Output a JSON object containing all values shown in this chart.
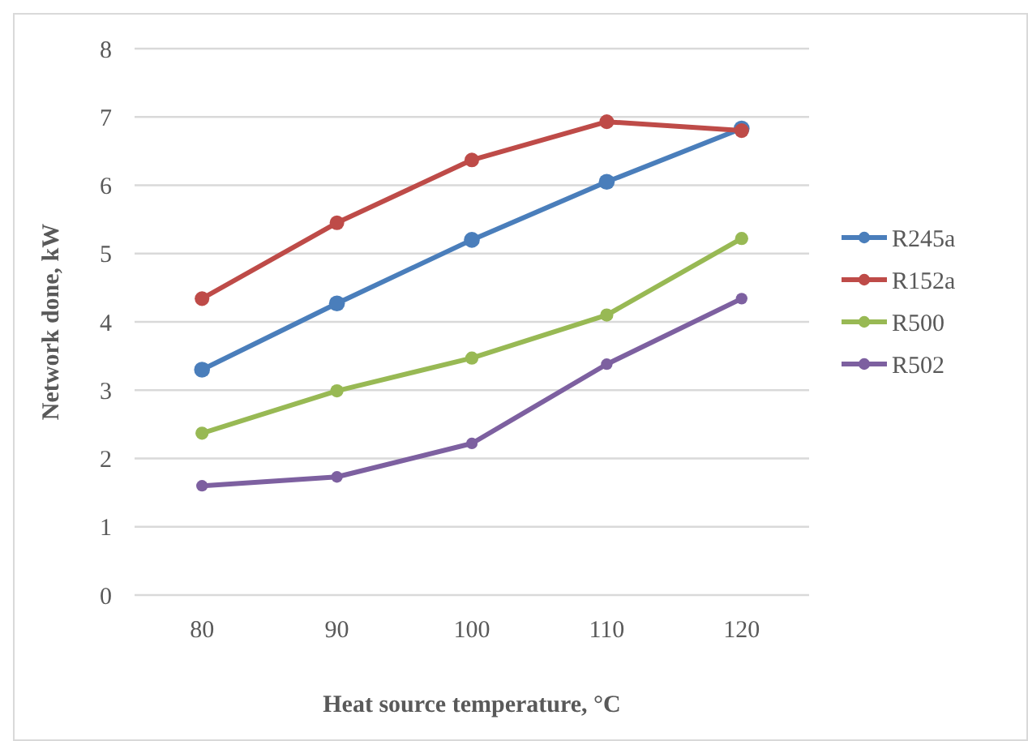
{
  "chart_data": {
    "type": "line",
    "xlabel": "Heat source temperature, °C",
    "ylabel": "Network done, kW",
    "categories": [
      "80",
      "90",
      "100",
      "110",
      "120"
    ],
    "series": [
      {
        "name": "R245a",
        "color": "#4a7ebb",
        "values": [
          3.3,
          4.27,
          5.2,
          6.05,
          6.83
        ]
      },
      {
        "name": "R152a",
        "color": "#be4b48",
        "values": [
          4.34,
          5.45,
          6.37,
          6.93,
          6.8
        ]
      },
      {
        "name": "R500",
        "color": "#98b954",
        "values": [
          2.37,
          2.99,
          3.47,
          4.1,
          5.22
        ]
      },
      {
        "name": "R502",
        "color": "#7d60a0",
        "values": [
          1.6,
          1.73,
          2.22,
          3.38,
          4.34
        ]
      }
    ],
    "ylim": [
      0,
      8
    ],
    "yticks": [
      0,
      1,
      2,
      3,
      4,
      5,
      6,
      7,
      8
    ],
    "grid": "y",
    "legend": "right",
    "marker": "circle",
    "line_style": "solid"
  }
}
